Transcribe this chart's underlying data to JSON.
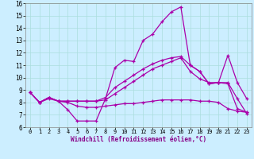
{
  "xlabel": "Windchill (Refroidissement éolien,°C)",
  "background_color": "#cceeff",
  "grid_color": "#aadddd",
  "line_color": "#aa00aa",
  "xlim": [
    -0.5,
    23.5
  ],
  "ylim": [
    6,
    16
  ],
  "xticks": [
    0,
    1,
    2,
    3,
    4,
    5,
    6,
    7,
    8,
    9,
    10,
    11,
    12,
    13,
    14,
    15,
    16,
    17,
    18,
    19,
    20,
    21,
    22,
    23
  ],
  "yticks": [
    6,
    7,
    8,
    9,
    10,
    11,
    12,
    13,
    14,
    15,
    16
  ],
  "lines": [
    {
      "x": [
        0,
        1,
        2,
        3,
        4,
        5,
        6,
        7,
        8,
        9,
        10,
        11,
        12,
        13,
        14,
        15,
        16,
        17,
        18,
        19,
        20,
        21,
        22,
        23
      ],
      "y": [
        8.8,
        8.0,
        8.4,
        8.1,
        7.4,
        6.5,
        6.5,
        6.5,
        8.3,
        10.8,
        11.4,
        11.3,
        13.0,
        13.5,
        14.5,
        15.3,
        15.7,
        11.0,
        10.5,
        9.5,
        9.6,
        9.6,
        8.3,
        7.1
      ]
    },
    {
      "x": [
        0,
        1,
        2,
        3,
        4,
        5,
        6,
        7,
        8,
        9,
        10,
        11,
        12,
        13,
        14,
        15,
        16,
        17,
        18,
        19,
        20,
        21,
        22,
        23
      ],
      "y": [
        8.8,
        8.0,
        8.4,
        8.1,
        8.1,
        8.1,
        8.1,
        8.1,
        8.4,
        9.2,
        9.7,
        10.2,
        10.7,
        11.1,
        11.4,
        11.6,
        11.7,
        11.0,
        10.5,
        9.5,
        9.6,
        9.5,
        7.5,
        7.2
      ]
    },
    {
      "x": [
        0,
        1,
        2,
        3,
        4,
        5,
        6,
        7,
        8,
        9,
        10,
        11,
        12,
        13,
        14,
        15,
        16,
        17,
        18,
        19,
        20,
        21,
        22,
        23
      ],
      "y": [
        8.8,
        8.0,
        8.4,
        8.1,
        8.1,
        8.1,
        8.1,
        8.1,
        8.2,
        8.7,
        9.2,
        9.7,
        10.2,
        10.7,
        11.0,
        11.3,
        11.6,
        10.5,
        9.9,
        9.6,
        9.6,
        11.8,
        9.6,
        8.3
      ]
    },
    {
      "x": [
        0,
        1,
        2,
        3,
        4,
        5,
        6,
        7,
        8,
        9,
        10,
        11,
        12,
        13,
        14,
        15,
        16,
        17,
        18,
        19,
        20,
        21,
        22,
        23
      ],
      "y": [
        8.8,
        8.0,
        8.3,
        8.1,
        8.0,
        7.7,
        7.6,
        7.6,
        7.7,
        7.8,
        7.9,
        7.9,
        8.0,
        8.1,
        8.2,
        8.2,
        8.2,
        8.2,
        8.1,
        8.1,
        8.0,
        7.5,
        7.3,
        7.2
      ]
    }
  ]
}
